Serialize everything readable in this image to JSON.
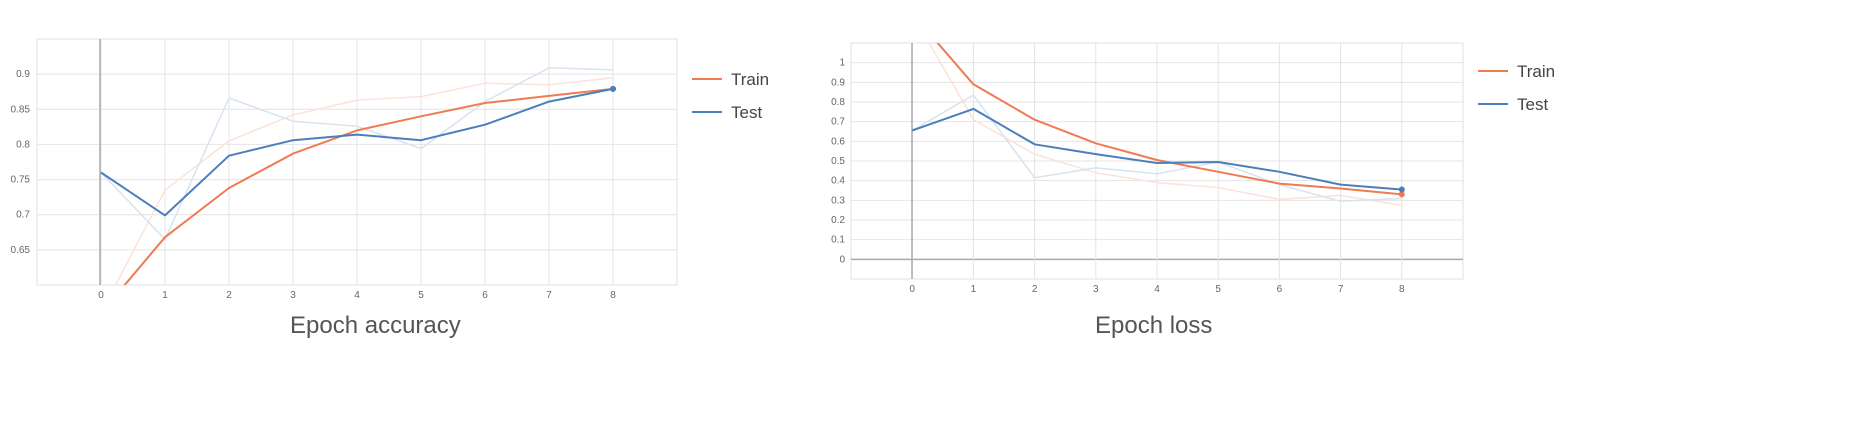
{
  "chart_data": [
    {
      "type": "line",
      "title": "Epoch accuracy",
      "xlabel": "",
      "ylabel": "",
      "x": [
        0,
        1,
        2,
        3,
        4,
        5,
        6,
        7,
        8
      ],
      "xlim": [
        -1,
        9
      ],
      "ylim": [
        0.6,
        0.95
      ],
      "y_ticks": [
        0.65,
        0.7,
        0.75,
        0.8,
        0.85,
        0.9
      ],
      "y_tick_labels": [
        "0.65",
        "0.7",
        "0.75",
        "0.8",
        "0.85",
        "0.9"
      ],
      "x_tick_labels": [
        "0",
        "1",
        "2",
        "3",
        "4",
        "5",
        "6",
        "7",
        "8"
      ],
      "grid": true,
      "legend_position": "right",
      "series": [
        {
          "name": "Train",
          "color": "#f07a52",
          "values": [
            0.56,
            0.668,
            0.738,
            0.787,
            0.82,
            0.84,
            0.859,
            0.869,
            0.879
          ],
          "raw_values": [
            0.56,
            0.735,
            0.805,
            0.842,
            0.863,
            0.868,
            0.887,
            0.885,
            0.895
          ]
        },
        {
          "name": "Test",
          "color": "#4a7fbc",
          "values": [
            0.76,
            0.699,
            0.784,
            0.806,
            0.814,
            0.806,
            0.828,
            0.861,
            0.879
          ],
          "raw_values": [
            0.76,
            0.665,
            0.866,
            0.833,
            0.826,
            0.794,
            0.861,
            0.909,
            0.906
          ]
        }
      ]
    },
    {
      "type": "line",
      "title": "Epoch loss",
      "xlabel": "",
      "ylabel": "",
      "x": [
        0,
        1,
        2,
        3,
        4,
        5,
        6,
        7,
        8
      ],
      "xlim": [
        -1,
        9
      ],
      "ylim": [
        -0.1,
        1.1
      ],
      "y_ticks": [
        0,
        0.1,
        0.2,
        0.3,
        0.4,
        0.5,
        0.6,
        0.7,
        0.8,
        0.9,
        1
      ],
      "y_tick_labels": [
        "0",
        "0.1",
        "0.2",
        "0.3",
        "0.4",
        "0.5",
        "0.6",
        "0.7",
        "0.8",
        "0.9",
        "1"
      ],
      "x_tick_labels": [
        "0",
        "1",
        "2",
        "3",
        "4",
        "5",
        "6",
        "7",
        "8"
      ],
      "grid": true,
      "legend_position": "right",
      "series": [
        {
          "name": "Train",
          "color": "#f07a52",
          "values": [
            1.25,
            0.89,
            0.71,
            0.59,
            0.505,
            0.445,
            0.385,
            0.36,
            0.33
          ],
          "raw_values": [
            1.25,
            0.71,
            0.535,
            0.44,
            0.39,
            0.365,
            0.305,
            0.325,
            0.275
          ]
        },
        {
          "name": "Test",
          "color": "#4a7fbc",
          "values": [
            0.655,
            0.765,
            0.585,
            0.535,
            0.49,
            0.495,
            0.445,
            0.38,
            0.355
          ],
          "raw_values": [
            0.655,
            0.835,
            0.415,
            0.465,
            0.435,
            0.495,
            0.38,
            0.295,
            0.31
          ]
        }
      ]
    }
  ]
}
